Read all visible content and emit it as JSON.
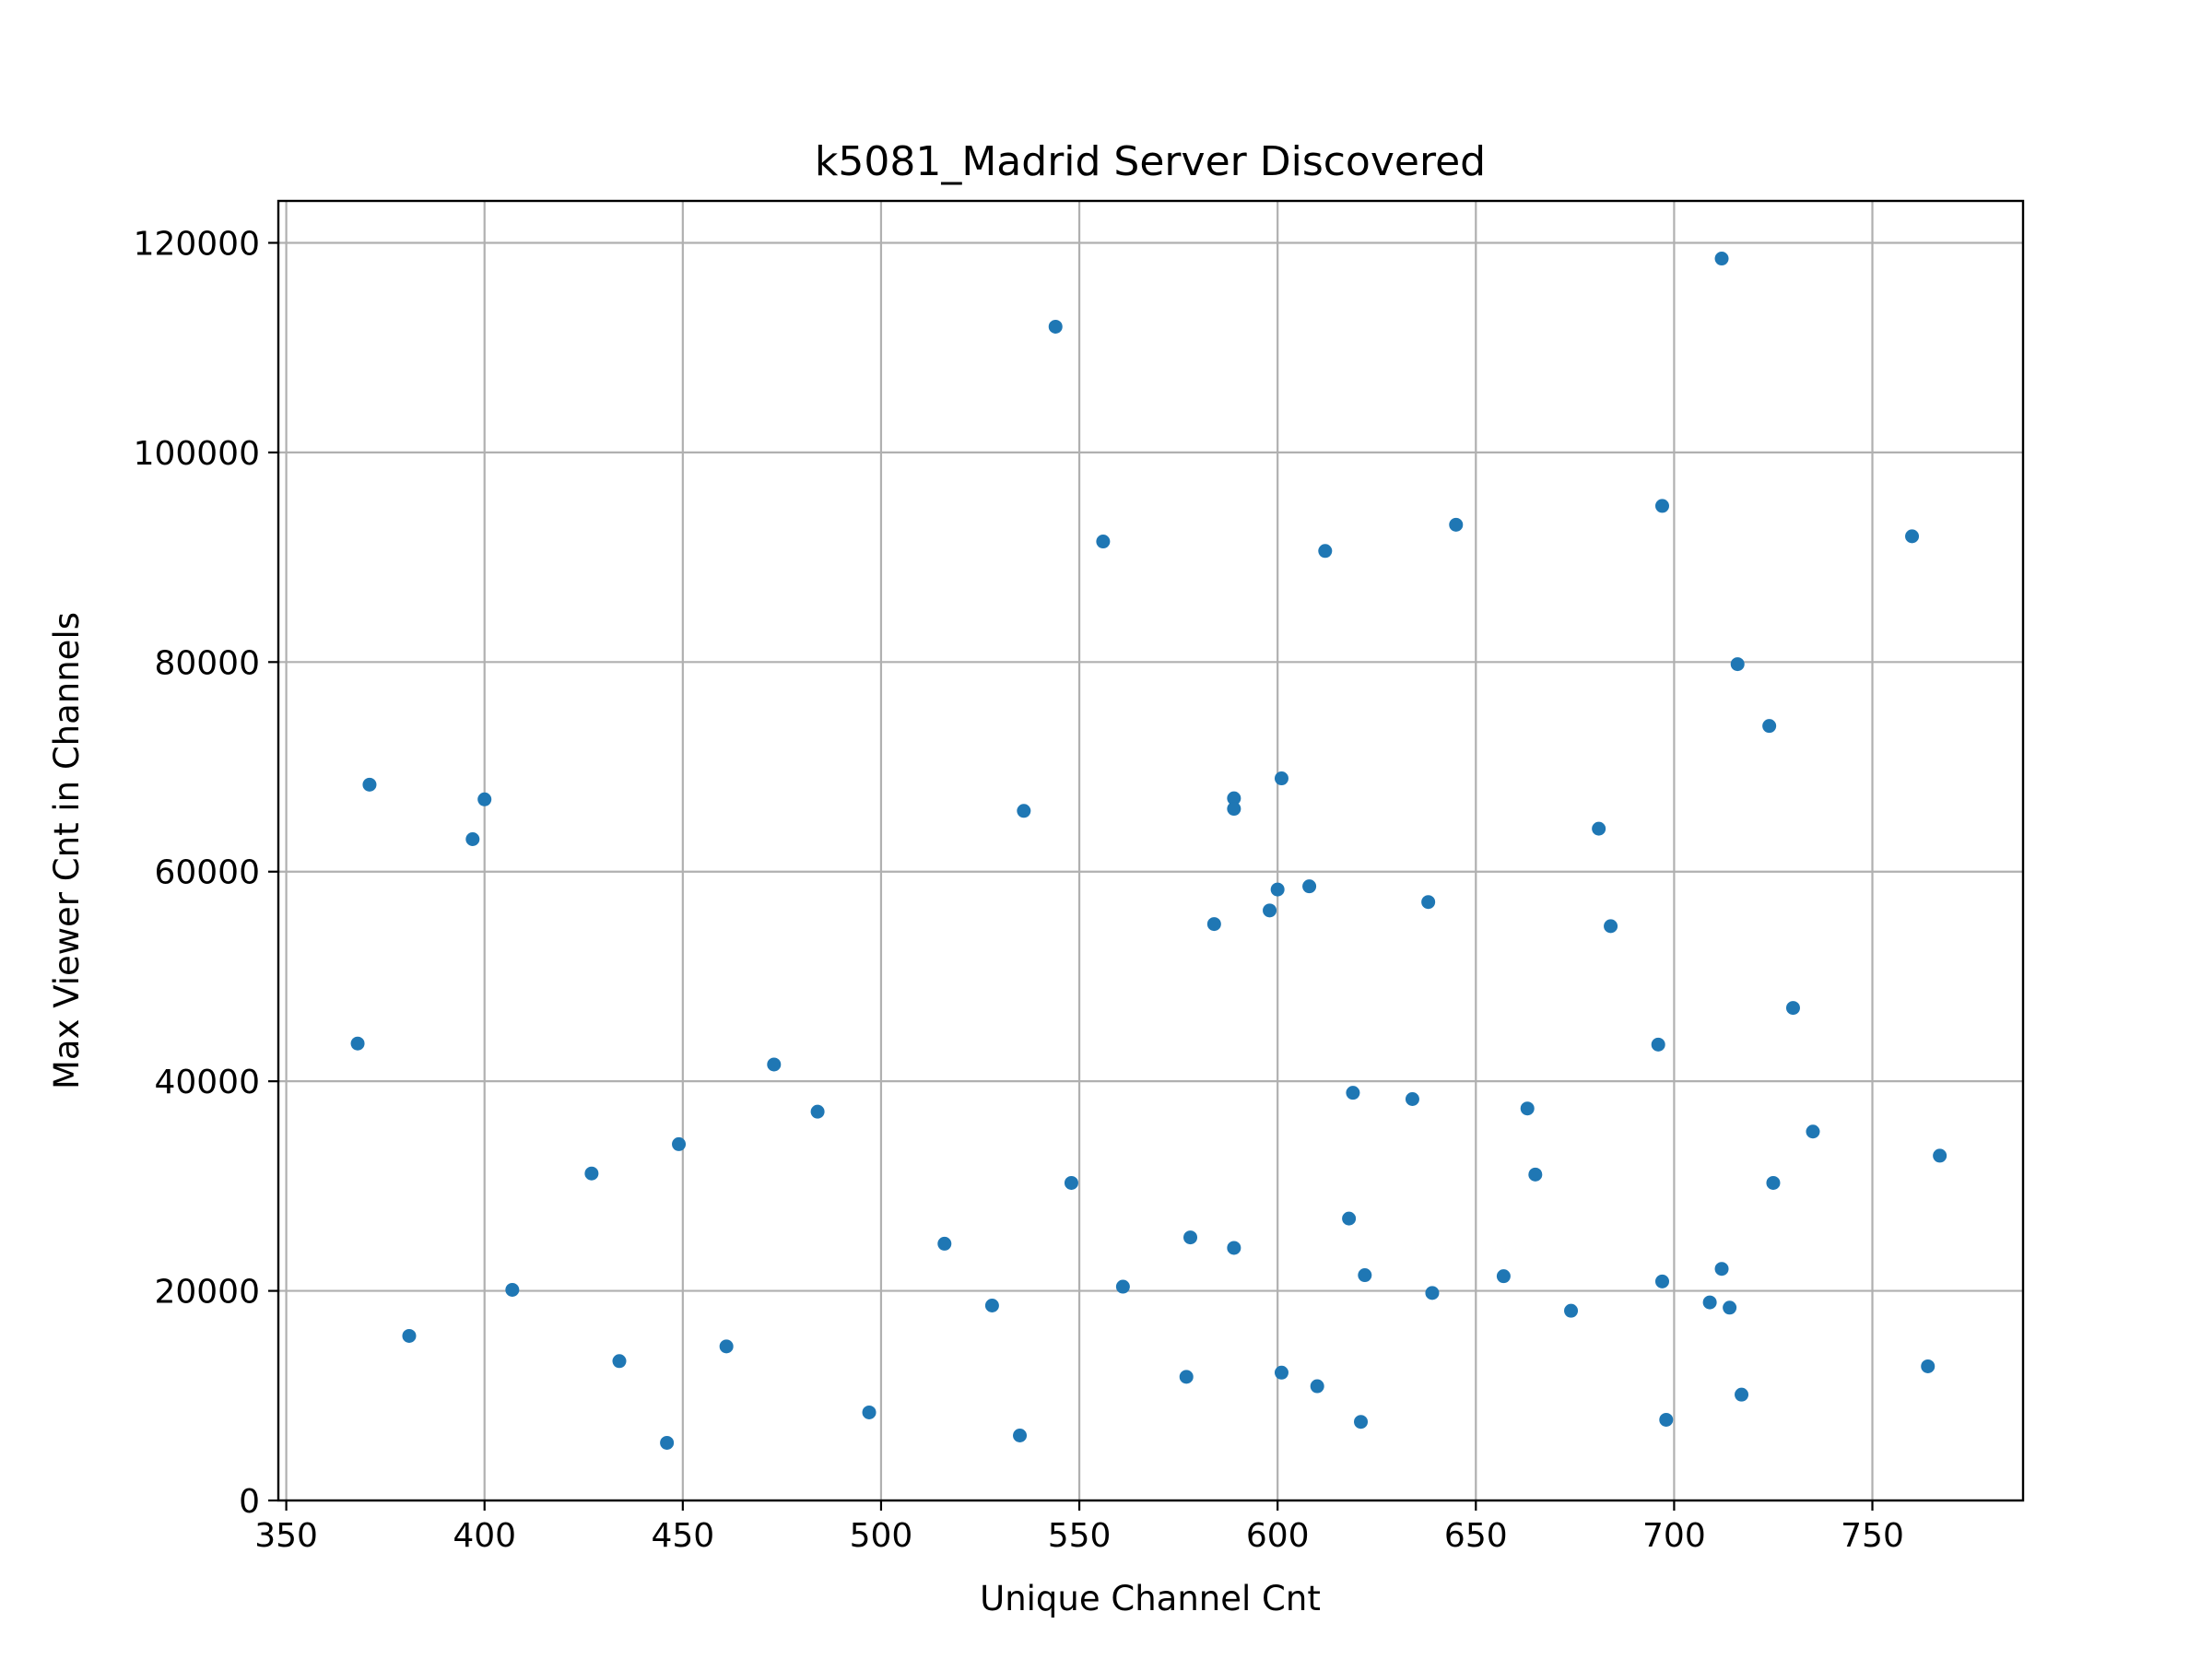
{
  "chart_data": {
    "type": "scatter",
    "title": "k5081_Madrid Server Discovered",
    "xlabel": "Unique Channel Cnt",
    "ylabel": "Max Viewer Cnt in Channels",
    "xlim": [
      348,
      788
    ],
    "ylim": [
      0,
      124000
    ],
    "xticks": [
      350,
      400,
      450,
      500,
      550,
      600,
      650,
      700,
      750
    ],
    "yticks": [
      0,
      20000,
      40000,
      60000,
      80000,
      100000,
      120000
    ],
    "grid": true,
    "color": "#1f77b4",
    "points": [
      {
        "x": 368,
        "y": 43600
      },
      {
        "x": 371,
        "y": 68300
      },
      {
        "x": 381,
        "y": 15700
      },
      {
        "x": 397,
        "y": 63100
      },
      {
        "x": 400,
        "y": 66900
      },
      {
        "x": 407,
        "y": 20100
      },
      {
        "x": 427,
        "y": 31200
      },
      {
        "x": 434,
        "y": 13300
      },
      {
        "x": 446,
        "y": 5500
      },
      {
        "x": 449,
        "y": 34000
      },
      {
        "x": 461,
        "y": 14700
      },
      {
        "x": 473,
        "y": 41600
      },
      {
        "x": 484,
        "y": 37100
      },
      {
        "x": 497,
        "y": 8400
      },
      {
        "x": 516,
        "y": 24500
      },
      {
        "x": 528,
        "y": 18600
      },
      {
        "x": 535,
        "y": 6200
      },
      {
        "x": 536,
        "y": 65800
      },
      {
        "x": 544,
        "y": 112000
      },
      {
        "x": 548,
        "y": 30300
      },
      {
        "x": 556,
        "y": 91500
      },
      {
        "x": 561,
        "y": 20400
      },
      {
        "x": 577,
        "y": 11800
      },
      {
        "x": 578,
        "y": 25100
      },
      {
        "x": 584,
        "y": 55000
      },
      {
        "x": 589,
        "y": 67000
      },
      {
        "x": 589,
        "y": 66000
      },
      {
        "x": 589,
        "y": 24100
      },
      {
        "x": 598,
        "y": 56300
      },
      {
        "x": 600,
        "y": 58300
      },
      {
        "x": 601,
        "y": 68900
      },
      {
        "x": 601,
        "y": 12200
      },
      {
        "x": 608,
        "y": 58600
      },
      {
        "x": 610,
        "y": 10900
      },
      {
        "x": 612,
        "y": 90600
      },
      {
        "x": 618,
        "y": 26900
      },
      {
        "x": 619,
        "y": 38900
      },
      {
        "x": 621,
        "y": 7500
      },
      {
        "x": 622,
        "y": 21500
      },
      {
        "x": 634,
        "y": 38300
      },
      {
        "x": 638,
        "y": 57100
      },
      {
        "x": 639,
        "y": 19800
      },
      {
        "x": 645,
        "y": 93100
      },
      {
        "x": 657,
        "y": 21400
      },
      {
        "x": 663,
        "y": 37400
      },
      {
        "x": 665,
        "y": 31100
      },
      {
        "x": 674,
        "y": 18100
      },
      {
        "x": 681,
        "y": 64100
      },
      {
        "x": 684,
        "y": 54800
      },
      {
        "x": 696,
        "y": 43500
      },
      {
        "x": 697,
        "y": 94900
      },
      {
        "x": 697,
        "y": 20900
      },
      {
        "x": 698,
        "y": 7700
      },
      {
        "x": 709,
        "y": 18900
      },
      {
        "x": 712,
        "y": 118500
      },
      {
        "x": 712,
        "y": 22100
      },
      {
        "x": 714,
        "y": 18400
      },
      {
        "x": 716,
        "y": 79800
      },
      {
        "x": 717,
        "y": 10100
      },
      {
        "x": 724,
        "y": 73900
      },
      {
        "x": 725,
        "y": 30300
      },
      {
        "x": 730,
        "y": 47000
      },
      {
        "x": 735,
        "y": 35200
      },
      {
        "x": 760,
        "y": 92000
      },
      {
        "x": 764,
        "y": 12800
      },
      {
        "x": 767,
        "y": 32900
      }
    ]
  }
}
